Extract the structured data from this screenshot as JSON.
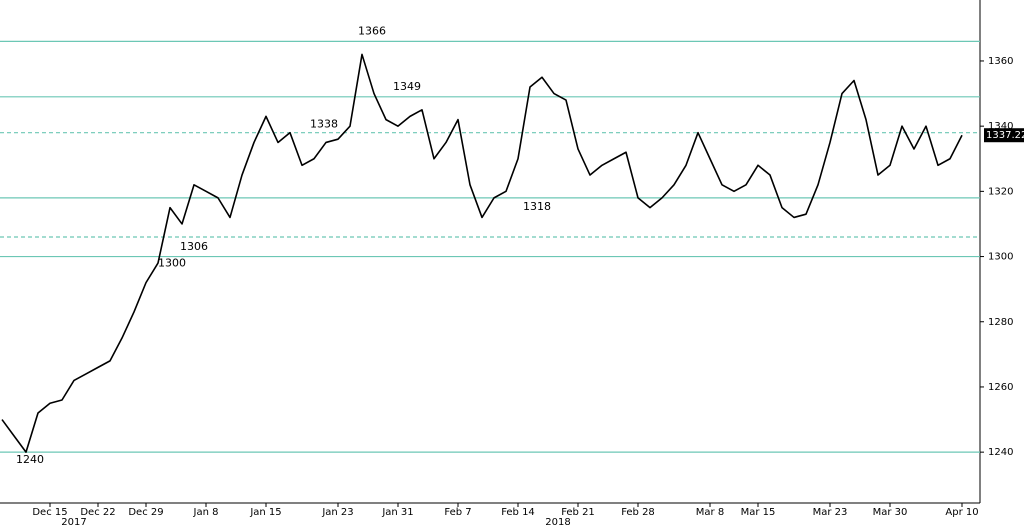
{
  "chart_data": {
    "type": "line",
    "categories": [
      null,
      null,
      null,
      null,
      "Dec 15",
      null,
      null,
      null,
      "Dec 22",
      null,
      null,
      null,
      "Dec 29",
      null,
      null,
      null,
      null,
      "Jan 8",
      null,
      null,
      null,
      null,
      "Jan 15",
      null,
      null,
      null,
      null,
      null,
      "Jan 23",
      null,
      null,
      null,
      null,
      "Jan 31",
      null,
      null,
      null,
      null,
      "Feb 7",
      null,
      null,
      null,
      null,
      "Feb 14",
      null,
      null,
      null,
      null,
      "Feb 21",
      null,
      null,
      null,
      null,
      "Feb 28",
      null,
      null,
      null,
      null,
      null,
      "Mar 8",
      null,
      null,
      null,
      "Mar 15",
      null,
      null,
      null,
      null,
      null,
      "Mar 23",
      null,
      null,
      null,
      null,
      "Mar 30",
      null,
      null,
      null,
      null,
      null,
      "Apr 10"
    ],
    "series": [
      {
        "color": "#000000",
        "values": [
          1250,
          1245,
          1240,
          1252,
          1255,
          1256,
          1262,
          1264,
          1266,
          1268,
          1275,
          1283,
          1292,
          1298,
          1315,
          1310,
          1322,
          1320,
          1318,
          1312,
          1325,
          1335,
          1343,
          1335,
          1338,
          1328,
          1330,
          1335,
          1336,
          1340,
          1362,
          1350,
          1342,
          1340,
          1343,
          1345,
          1330,
          1335,
          1342,
          1322,
          1312,
          1318,
          1320,
          1330,
          1352,
          1355,
          1350,
          1348,
          1333,
          1325,
          1328,
          1330,
          1332,
          1318,
          1315,
          1318,
          1322,
          1328,
          1338,
          1330,
          1322,
          1320,
          1322,
          1328,
          1325,
          1315,
          1312,
          1313,
          1322,
          1335,
          1350,
          1354,
          1342,
          1325,
          1328,
          1340,
          1333,
          1340,
          1328,
          1330,
          1337.22
        ]
      }
    ],
    "years": [
      "2017",
      "2018"
    ],
    "levels": [
      {
        "value": 1366,
        "dashed": false
      },
      {
        "value": 1349,
        "dashed": false
      },
      {
        "value": 1338,
        "dashed": true
      },
      {
        "value": 1318,
        "dashed": false
      },
      {
        "value": 1306,
        "dashed": true
      },
      {
        "value": 1300,
        "dashed": false
      },
      {
        "value": 1240,
        "dashed": false
      }
    ],
    "level_color": "#6cc7b5",
    "last_price": 1337.22,
    "ylim": [
      1224.4,
      1378.7
    ],
    "yticks": [
      1240,
      1260,
      1280,
      1300,
      1320,
      1340,
      1360
    ]
  }
}
